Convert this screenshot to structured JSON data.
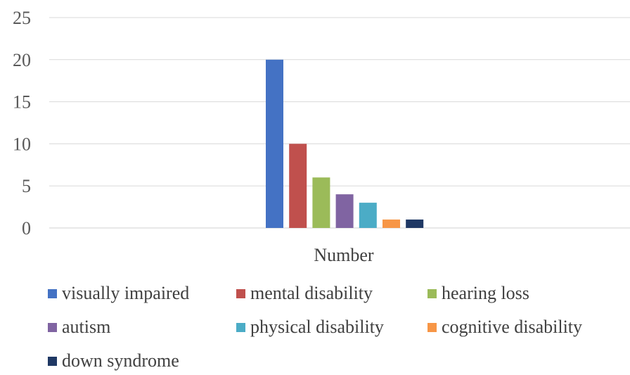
{
  "chart_data": {
    "type": "bar",
    "categories": [
      "Number"
    ],
    "xlabel": "",
    "ylabel": "",
    "ylim": [
      0,
      25
    ],
    "yticks": [
      0,
      5,
      10,
      15,
      20,
      25
    ],
    "grid": true,
    "legend_position": "bottom",
    "series": [
      {
        "name": "visually impaired",
        "values": [
          20
        ],
        "color": "#4472C4"
      },
      {
        "name": "mental disability",
        "values": [
          10
        ],
        "color": "#C0504D"
      },
      {
        "name": "hearing loss",
        "values": [
          6
        ],
        "color": "#9BBB59"
      },
      {
        "name": "autism",
        "values": [
          4
        ],
        "color": "#8064A2"
      },
      {
        "name": "physical disability",
        "values": [
          3
        ],
        "color": "#4BACC6"
      },
      {
        "name": "cognitive disability",
        "values": [
          1
        ],
        "color": "#F79646"
      },
      {
        "name": "down syndrome",
        "values": [
          1
        ],
        "color": "#1F3864"
      }
    ]
  }
}
